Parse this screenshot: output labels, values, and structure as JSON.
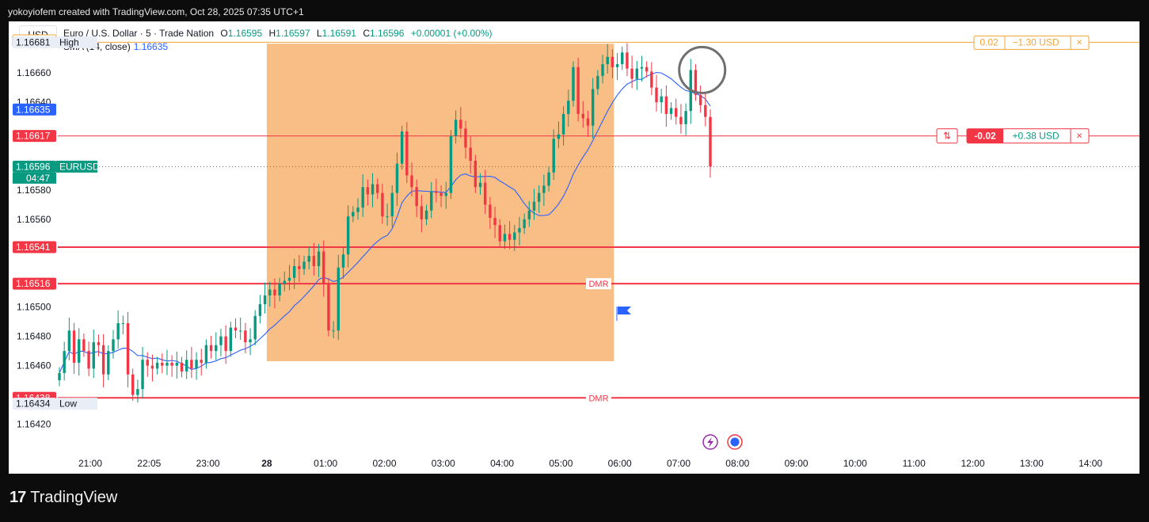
{
  "header": {
    "author": "yokoyiofem created with TradingView.com, Oct 28, 2025 07:35 UTC+1",
    "currency": "USD",
    "symbol_desc": "Euro / U.S. Dollar · 5 · Trade Nation",
    "ohlc": {
      "o_label": "O",
      "o": "1.16595",
      "h_label": "H",
      "h": "1.16597",
      "l_label": "L",
      "l": "1.16591",
      "c_label": "C",
      "c": "1.16596",
      "change": "+0.00001 (+0.00%)"
    },
    "sma_label": "SMA (14, close)",
    "sma_value": "1.16635"
  },
  "brand": {
    "logo": "17",
    "name": "TradingView"
  },
  "colors": {
    "up": "#089981",
    "down": "#f23645",
    "sma": "#2962ff",
    "box": "#f7b97b",
    "alert": "#f23645",
    "gold": "#f0a43a"
  },
  "chart_data": {
    "type": "candlestick",
    "symbol": "EURUSD",
    "ylim": [
      1.1641,
      1.16692
    ],
    "y_ticks": [
      "1.16420",
      "1.16460",
      "1.16480",
      "1.16500",
      "1.16560",
      "1.16580",
      "1.16640",
      "1.16660"
    ],
    "x_ticks": [
      {
        "label": "21:00",
        "pos": 0.0
      },
      {
        "label": "22:05",
        "pos": 1.0
      },
      {
        "label": "23:00",
        "pos": 2.0
      },
      {
        "label": "28",
        "pos": 3.0
      },
      {
        "label": "01:00",
        "pos": 4.0
      },
      {
        "label": "02:00",
        "pos": 5.0
      },
      {
        "label": "03:00",
        "pos": 6.0
      },
      {
        "label": "04:00",
        "pos": 7.0
      },
      {
        "label": "05:00",
        "pos": 8.0
      },
      {
        "label": "06:00",
        "pos": 9.0
      },
      {
        "label": "07:00",
        "pos": 10.0
      },
      {
        "label": "08:00",
        "pos": 11.0
      },
      {
        "label": "09:00",
        "pos": 12.0
      },
      {
        "label": "10:00",
        "pos": 13.0
      },
      {
        "label": "11:00",
        "pos": 14.0
      },
      {
        "label": "12:00",
        "pos": 15.0
      },
      {
        "label": "13:00",
        "pos": 16.0
      },
      {
        "label": "14:00",
        "pos": 17.0
      }
    ],
    "closes": [
      1.16455,
      1.1647,
      1.16484,
      1.16462,
      1.16478,
      1.1647,
      1.16458,
      1.16476,
      1.16474,
      1.16454,
      1.1647,
      1.16478,
      1.16489,
      1.16489,
      1.16454,
      1.1644,
      1.16444,
      1.16464,
      1.1646,
      1.16458,
      1.16462,
      1.1646,
      1.16462,
      1.1646,
      1.16462,
      1.16456,
      1.16464,
      1.16458,
      1.16464,
      1.16462,
      1.16474,
      1.1647,
      1.16474,
      1.1648,
      1.1647,
      1.16486,
      1.16484,
      1.16484,
      1.16476,
      1.16478,
      1.16494,
      1.16502,
      1.16508,
      1.16512,
      1.16508,
      1.16516,
      1.16518,
      1.1652,
      1.16528,
      1.16526,
      1.16531,
      1.16535,
      1.16528,
      1.16538,
      1.16516,
      1.16484,
      1.16484,
      1.16527,
      1.16536,
      1.16562,
      1.16565,
      1.16568,
      1.16582,
      1.16577,
      1.16584,
      1.16578,
      1.16562,
      1.16562,
      1.16578,
      1.16598,
      1.1662,
      1.1659,
      1.16582,
      1.16569,
      1.1656,
      1.16566,
      1.16579,
      1.16578,
      1.16576,
      1.16578,
      1.16617,
      1.16628,
      1.16622,
      1.16609,
      1.166,
      1.16582,
      1.16585,
      1.1657,
      1.16561,
      1.16556,
      1.16545,
      1.1655,
      1.16546,
      1.16551,
      1.16554,
      1.1656,
      1.16566,
      1.16572,
      1.16578,
      1.16583,
      1.16592,
      1.16615,
      1.16618,
      1.16632,
      1.16641,
      1.16664,
      1.16632,
      1.16629,
      1.16624,
      1.16649,
      1.16658,
      1.16666,
      1.16671,
      1.16664,
      1.16666,
      1.16674,
      1.16663,
      1.16656,
      1.16663,
      1.16664,
      1.16661,
      1.1665,
      1.1664,
      1.16644,
      1.16632,
      1.16636,
      1.1663,
      1.16625,
      1.16634,
      1.16662,
      1.16645,
      1.16638,
      1.1663,
      1.16596
    ],
    "opens_hint": "open = previous close",
    "price_labels": [
      {
        "price": 1.16682,
        "text": "1.16682",
        "style": "gold"
      },
      {
        "price": 1.16681,
        "text": "1.16681",
        "tag": "High",
        "style": "light"
      },
      {
        "price": 1.16635,
        "text": "1.16635",
        "style": "blue"
      },
      {
        "price": 1.16617,
        "text": "1.16617",
        "style": "red"
      },
      {
        "price": 1.16596,
        "text": "1.16596",
        "tag": "EURUSD",
        "tag2": "04:47",
        "style": "green"
      },
      {
        "price": 1.16541,
        "text": "1.16541",
        "style": "red"
      },
      {
        "price": 1.16516,
        "text": "1.16516",
        "style": "red"
      },
      {
        "price": 1.16438,
        "text": "1.16438",
        "style": "red"
      },
      {
        "price": 1.16434,
        "text": "1.16434",
        "tag": "Low",
        "style": "light"
      }
    ],
    "levels": [
      {
        "price": 1.16541,
        "label": ""
      },
      {
        "price": 1.16516,
        "label": "DMR"
      },
      {
        "price": 1.16438,
        "label": "DMR"
      }
    ],
    "position_tp": {
      "price": 1.16681,
      "left": "0.02",
      "right": "−1.30 USD",
      "close": "×"
    },
    "position_entry": {
      "price": 1.16617,
      "icon": "⇅",
      "left": "-0.02",
      "right": "+0.38 USD",
      "close": "×"
    },
    "box": {
      "from": 3.0,
      "to": 8.9,
      "price_top": 1.1668,
      "price_bottom": 1.16463
    },
    "circle": {
      "x": 10.4,
      "price": 1.16662
    }
  }
}
